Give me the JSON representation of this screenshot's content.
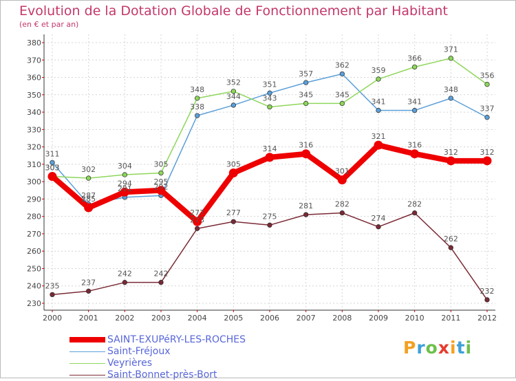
{
  "header": {
    "title": "Evolution de la Dotation Globale de Fonctionnement par Habitant",
    "subtitle": "(en € et par an)"
  },
  "chart_data": {
    "type": "line",
    "title": "Evolution de la Dotation Globale de Fonctionnement par Habitant",
    "subtitle": "(en € et par an)",
    "xlabel": "",
    "ylabel": "",
    "ylim": [
      230,
      380
    ],
    "yticks": [
      230,
      240,
      250,
      260,
      270,
      280,
      290,
      300,
      310,
      320,
      330,
      340,
      350,
      360,
      370,
      380
    ],
    "grid": true,
    "x": [
      "2000",
      "2001",
      "2002",
      "2003",
      "2004",
      "2005",
      "2006",
      "2007",
      "2008",
      "2009",
      "2010",
      "2011",
      "2012"
    ],
    "series": [
      {
        "name": "Saint-Fréjoux",
        "color": "#5b9fd8",
        "values": [
          311,
          287,
          291,
          292,
          338,
          344,
          351,
          357,
          362,
          341,
          341,
          348,
          337
        ]
      },
      {
        "name": "Veyrières",
        "color": "#8ed65a",
        "values": [
          303,
          302,
          304,
          305,
          348,
          352,
          343,
          345,
          345,
          359,
          366,
          371,
          356
        ]
      },
      {
        "name": "Saint-Bonnet-près-Bort",
        "color": "#7a2a35",
        "values": [
          235,
          237,
          242,
          242,
          273,
          277,
          275,
          281,
          282,
          274,
          282,
          262,
          232
        ]
      },
      {
        "name": "SAINT-EXUPéRY-LES-ROCHES",
        "color": "#ee0000",
        "values": [
          303,
          285,
          294,
          295,
          277,
          305,
          314,
          316,
          301,
          321,
          316,
          312,
          312
        ]
      }
    ],
    "labels": {
      "Saint-Fréjoux": [
        "311",
        "287",
        "291",
        "292",
        "338",
        "344",
        "351",
        "357",
        "362",
        "341",
        "341",
        "348",
        "337"
      ],
      "Veyrières": [
        "303",
        "302",
        "304",
        "305",
        "348",
        "352",
        "343",
        "345",
        "345",
        "359",
        "366",
        "371",
        "356"
      ],
      "Saint-Bonnet-près-Bort": [
        "235",
        "237",
        "242",
        "242",
        "273",
        "277",
        "275",
        "281",
        "282",
        "274",
        "282",
        "262",
        "232"
      ],
      "SAINT-EXUPéRY-LES-ROCHES": [
        "303",
        "285",
        "294",
        "295",
        "277",
        "305",
        "314",
        "316",
        "301",
        "321",
        "316",
        "312",
        "312"
      ]
    },
    "legend": {
      "position": "bottom-left",
      "entries": [
        "SAINT-EXUPéRY-LES-ROCHES",
        "Saint-Fréjoux",
        "Veyrières",
        "Saint-Bonnet-près-Bort"
      ]
    }
  },
  "brand": {
    "logo_text": "Proxiti"
  }
}
